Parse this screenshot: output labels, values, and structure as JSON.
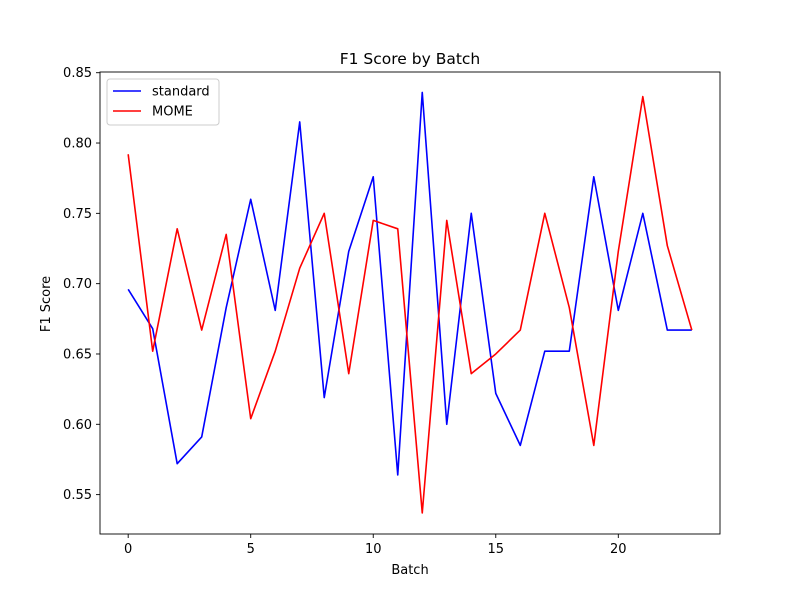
{
  "chart_data": {
    "type": "line",
    "title": "F1 Score by Batch",
    "xlabel": "Batch",
    "ylabel": "F1 Score",
    "xlim": [
      -1.15,
      24.15
    ],
    "ylim": [
      0.522,
      0.8505
    ],
    "xticks": [
      0,
      5,
      10,
      15,
      20
    ],
    "yticks": [
      0.55,
      0.6,
      0.65,
      0.7,
      0.75,
      0.8,
      0.85
    ],
    "ytick_labels": [
      "0.55",
      "0.60",
      "0.65",
      "0.70",
      "0.75",
      "0.80",
      "0.85"
    ],
    "grid": false,
    "legend_position": "top-left",
    "x": [
      0,
      1,
      2,
      3,
      4,
      5,
      6,
      7,
      8,
      9,
      10,
      11,
      12,
      13,
      14,
      15,
      16,
      17,
      18,
      19,
      20,
      21,
      22,
      23
    ],
    "series": [
      {
        "name": "standard",
        "color": "#0000ff",
        "values": [
          0.696,
          0.668,
          0.572,
          0.591,
          0.683,
          0.76,
          0.681,
          0.815,
          0.619,
          0.723,
          0.776,
          0.564,
          0.836,
          0.6,
          0.75,
          0.622,
          0.585,
          0.652,
          0.652,
          0.776,
          0.681,
          0.75,
          0.667,
          0.667
        ]
      },
      {
        "name": "MOME",
        "color": "#ff0000",
        "values": [
          0.792,
          0.652,
          0.739,
          0.667,
          0.735,
          0.604,
          0.652,
          0.711,
          0.75,
          0.636,
          0.745,
          0.739,
          0.537,
          0.745,
          0.636,
          0.65,
          0.667,
          0.75,
          0.683,
          0.585,
          0.723,
          0.833,
          0.727,
          0.667
        ]
      }
    ]
  }
}
